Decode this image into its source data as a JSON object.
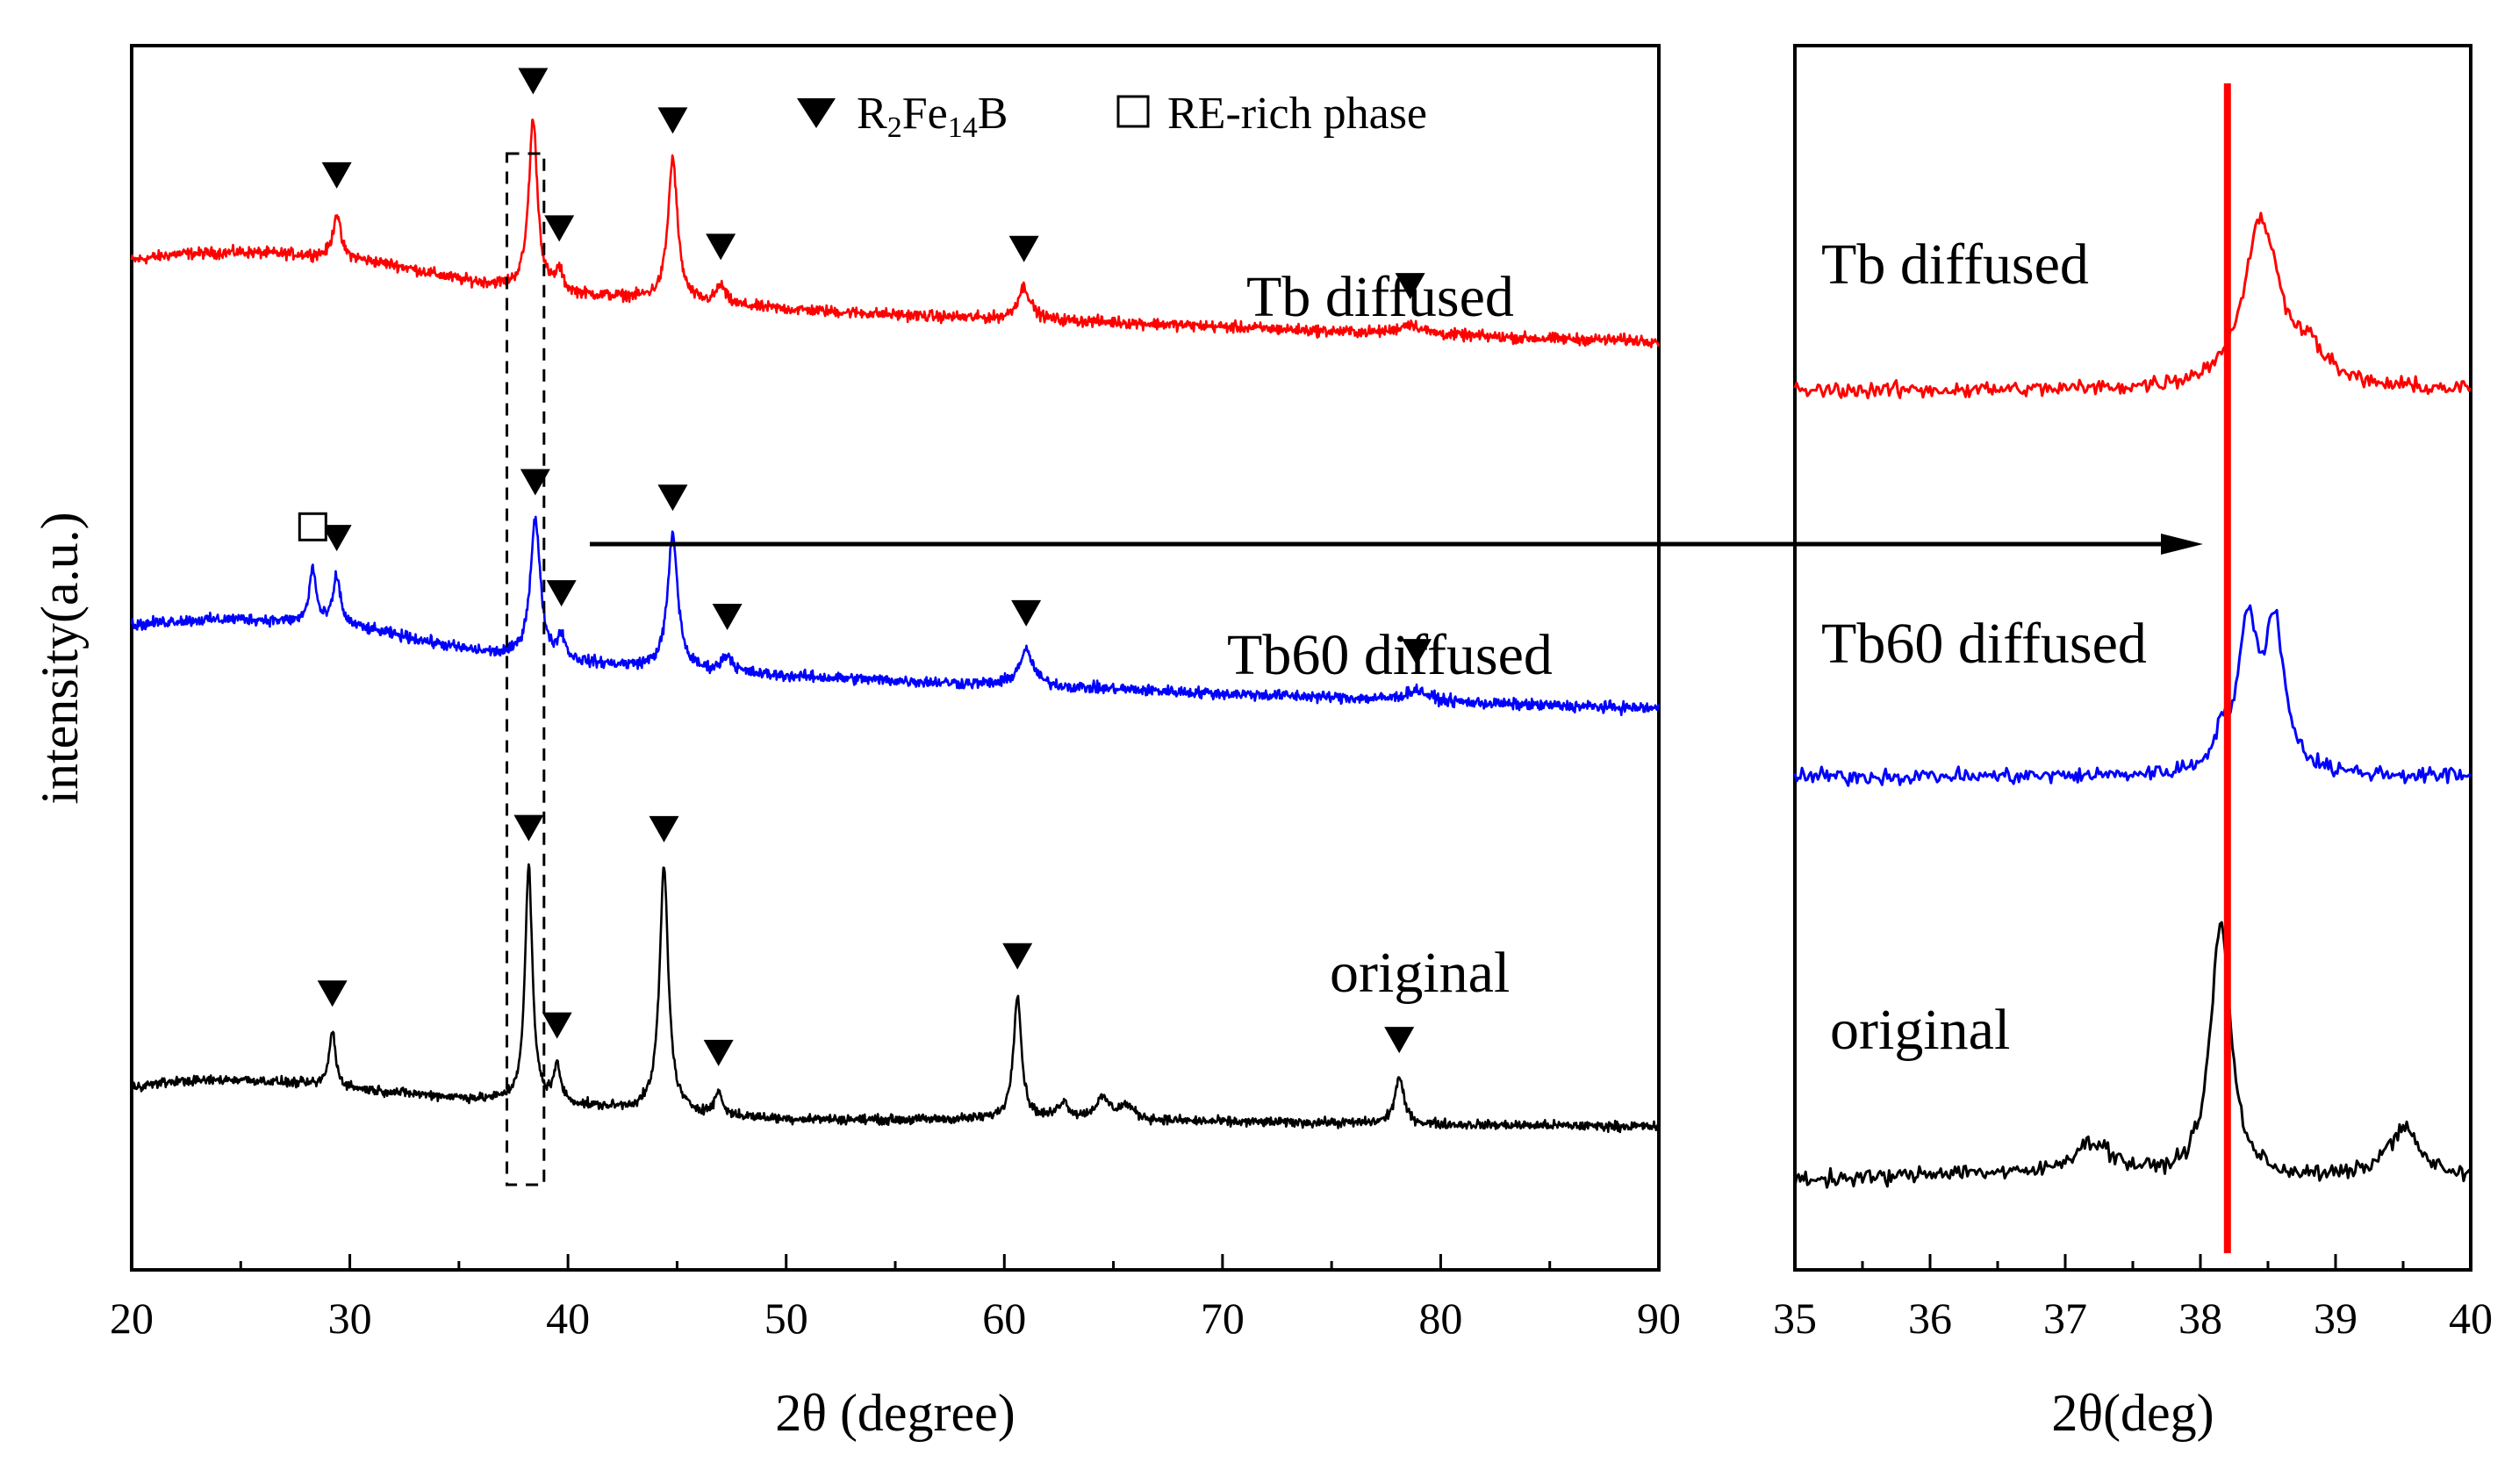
{
  "chart_data": [
    {
      "type": "line",
      "title": "",
      "xlabel": "2θ (degree)",
      "ylabel": "intensity(a.u.)",
      "xlim": [
        20,
        90
      ],
      "xticks": [
        20,
        30,
        40,
        50,
        60,
        70,
        80,
        90
      ],
      "legend": {
        "placement": "top",
        "entries": [
          {
            "marker": "filled-down-triangle",
            "label_main": "R",
            "sub1": "2",
            "label_mid": "Fe",
            "sub2": "14",
            "label_end": "B"
          },
          {
            "marker": "open-square",
            "label": "RE-rich phase"
          }
        ]
      },
      "series": [
        {
          "name": "Tb diffused",
          "color": "#ff0000",
          "offset": 80,
          "background": [
            [
              20,
              93
            ],
            [
              22,
              100
            ],
            [
              25,
              102
            ],
            [
              28,
              99
            ],
            [
              30,
              95
            ],
            [
              32,
              88
            ],
            [
              35,
              72
            ],
            [
              37,
              65
            ],
            [
              40,
              56
            ],
            [
              43,
              52
            ],
            [
              46,
              46
            ],
            [
              50,
              40
            ],
            [
              55,
              34
            ],
            [
              60,
              29
            ],
            [
              65,
              26
            ],
            [
              70,
              21
            ],
            [
              75,
              16
            ],
            [
              80,
              12
            ],
            [
              85,
              8
            ],
            [
              90,
              6
            ]
          ],
          "peaks": [
            [
              29.4,
              48,
              0.2
            ],
            [
              38.4,
              185,
              0.24
            ],
            [
              39.6,
              22,
              0.2
            ],
            [
              44.8,
              155,
              0.26
            ],
            [
              47.0,
              20,
              0.25
            ],
            [
              60.9,
              36,
              0.35
            ],
            [
              78.6,
              11,
              0.6
            ]
          ],
          "markers_2theta": [
            29.4,
            38.4,
            39.6,
            44.8,
            47.0,
            60.9,
            78.6
          ]
        },
        {
          "name": "Tb60 diffused",
          "color": "#0000ff",
          "offset": 42,
          "background": [
            [
              20,
              95
            ],
            [
              22,
              100
            ],
            [
              25,
              102
            ],
            [
              28,
              98
            ],
            [
              30,
              94
            ],
            [
              32,
              85
            ],
            [
              35,
              70
            ],
            [
              37,
              62
            ],
            [
              40,
              55
            ],
            [
              43,
              50
            ],
            [
              46,
              45
            ],
            [
              50,
              40
            ],
            [
              55,
              35
            ],
            [
              60,
              30
            ],
            [
              65,
              26
            ],
            [
              70,
              21
            ],
            [
              75,
              17
            ],
            [
              80,
              12
            ],
            [
              85,
              8
            ],
            [
              90,
              5
            ]
          ],
          "peaks": [
            [
              28.3,
              60,
              0.18
            ],
            [
              29.4,
              52,
              0.2
            ],
            [
              38.5,
              150,
              0.28
            ],
            [
              39.7,
              25,
              0.2
            ],
            [
              44.8,
              145,
              0.28
            ],
            [
              47.3,
              18,
              0.3
            ],
            [
              61.0,
              38,
              0.4
            ],
            [
              78.9,
              12,
              0.6
            ]
          ],
          "markers_2theta": [
            29.4,
            38.5,
            39.7,
            44.8,
            47.3,
            61.0,
            78.9
          ],
          "re_rich_markers_2theta": [
            28.3
          ]
        },
        {
          "name": "original",
          "color": "#000000",
          "offset": 0,
          "background": [
            [
              20,
              80
            ],
            [
              22,
              86
            ],
            [
              25,
              88
            ],
            [
              28,
              83
            ],
            [
              30,
              78
            ],
            [
              33,
              72
            ],
            [
              36,
              66
            ],
            [
              38,
              64
            ],
            [
              41,
              58
            ],
            [
              44,
              54
            ],
            [
              47,
              48
            ],
            [
              50,
              45
            ],
            [
              55,
              44
            ],
            [
              60,
              45
            ],
            [
              65,
              44
            ],
            [
              70,
              42
            ],
            [
              75,
              41
            ],
            [
              80,
              39
            ],
            [
              85,
              38
            ],
            [
              90,
              37
            ]
          ],
          "peaks": [
            [
              29.2,
              60,
              0.18
            ],
            [
              38.2,
              255,
              0.2
            ],
            [
              39.5,
              38,
              0.2
            ],
            [
              44.4,
              265,
              0.24
            ],
            [
              46.9,
              25,
              0.2
            ],
            [
              60.6,
              135,
              0.22
            ],
            [
              62.7,
              18,
              0.3
            ],
            [
              64.5,
              22,
              0.4
            ],
            [
              65.6,
              15,
              0.4
            ],
            [
              78.1,
              50,
              0.25
            ]
          ],
          "markers_2theta": [
            29.2,
            38.2,
            39.5,
            44.4,
            46.9,
            60.6,
            78.1
          ]
        }
      ],
      "highlight_box_2theta": [
        37.2,
        38.9
      ],
      "arrow_2theta": [
        41,
        89
      ]
    },
    {
      "type": "line",
      "title": "",
      "xlabel": "2θ(deg)",
      "ylabel": "",
      "xlim": [
        35,
        40
      ],
      "xticks": [
        35,
        36,
        37,
        38,
        39,
        40
      ],
      "reference_line_2theta": 38.2,
      "series": [
        {
          "name": "Tb diffused",
          "color": "#ff0000",
          "base": 0,
          "peaks": [
            [
              38.45,
              190,
              0.16
            ],
            [
              38.8,
              35,
              0.15
            ]
          ]
        },
        {
          "name": "Tb60 diffused",
          "color": "#0000ff",
          "base": 0,
          "peaks": [
            [
              38.35,
              160,
              0.09
            ],
            [
              38.55,
              160,
              0.09
            ],
            [
              38.15,
              35,
              0.06
            ]
          ]
        },
        {
          "name": "original",
          "color": "#000000",
          "base": 0,
          "peaks": [
            [
              38.15,
              290,
              0.09
            ],
            [
              37.2,
              40,
              0.2
            ],
            [
              39.5,
              58,
              0.15
            ],
            [
              36.2,
              8,
              0.4
            ]
          ]
        }
      ]
    }
  ]
}
